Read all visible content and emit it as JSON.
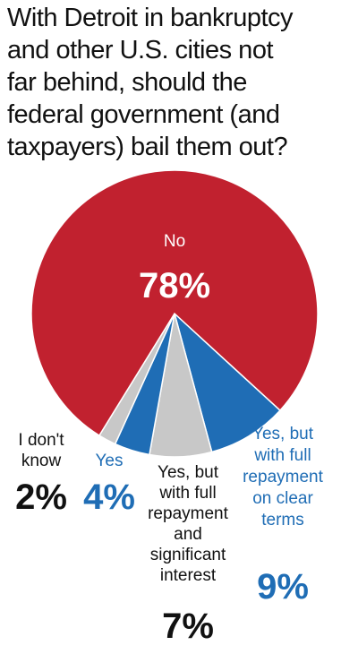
{
  "chart_data": {
    "type": "pie",
    "title": "With Detroit in bankruptcy\nand other U.S. cities not\nfar behind, should the\nfederal government (and\ntaxpayers) bail them out?",
    "categories": [
      "Yes, but\nwith full\nrepayment\non clear\nterms",
      "Yes, but\nwith full\nrepayment\nand\nsignificant\ninterest",
      "Yes",
      "I don't\nknow",
      "No"
    ],
    "values": [
      9,
      7,
      4,
      2,
      78
    ],
    "value_labels": [
      "9%",
      "7%",
      "4%",
      "2%",
      "78%"
    ],
    "colors": [
      "#1f6db5",
      "#c8c8c8",
      "#1f6db5",
      "#c8c8c8",
      "#c1212f"
    ],
    "label_colors": [
      "#1f6db5",
      "#111111",
      "#1f6db5",
      "#111111",
      "#ffffff"
    ]
  }
}
